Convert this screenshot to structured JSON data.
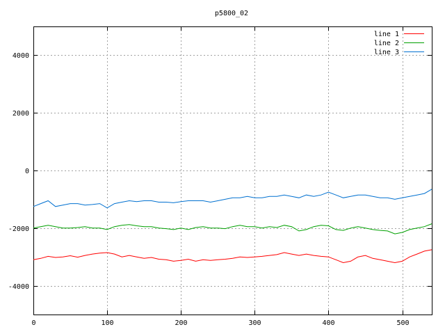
{
  "chart_data": {
    "type": "line",
    "title": "p5800_02",
    "xlabel": "",
    "ylabel": "",
    "xlim": [
      0,
      540
    ],
    "ylim": [
      -5000,
      5000
    ],
    "xticks": [
      0,
      100,
      200,
      300,
      400,
      500
    ],
    "yticks": [
      -4000,
      -2000,
      0,
      2000,
      4000
    ],
    "x_tick_labels": [
      "0",
      "100",
      "200",
      "300",
      "400",
      "500"
    ],
    "y_tick_labels": [
      "-4000",
      "-2000",
      "0",
      "2000",
      "4000"
    ],
    "grid": true,
    "legend_position": "top-right",
    "x": [
      0,
      10,
      20,
      30,
      40,
      50,
      60,
      70,
      80,
      90,
      100,
      110,
      120,
      130,
      140,
      150,
      160,
      170,
      180,
      190,
      200,
      210,
      220,
      230,
      240,
      250,
      260,
      270,
      280,
      290,
      300,
      310,
      320,
      330,
      340,
      350,
      360,
      370,
      380,
      390,
      400,
      410,
      420,
      430,
      440,
      450,
      460,
      470,
      480,
      490,
      500,
      510,
      520,
      530,
      540
    ],
    "series": [
      {
        "name": "line 1",
        "color": "#ff0000",
        "values": [
          -3100,
          -3050,
          -2980,
          -3020,
          -3000,
          -2960,
          -3010,
          -2950,
          -2900,
          -2870,
          -2850,
          -2900,
          -3000,
          -2950,
          -3000,
          -3050,
          -3020,
          -3080,
          -3100,
          -3150,
          -3120,
          -3080,
          -3150,
          -3100,
          -3120,
          -3100,
          -3080,
          -3050,
          -3000,
          -3020,
          -3000,
          -2980,
          -2950,
          -2920,
          -2850,
          -2900,
          -2950,
          -2900,
          -2950,
          -2980,
          -3000,
          -3100,
          -3200,
          -3150,
          -3000,
          -2950,
          -3050,
          -3100,
          -3150,
          -3200,
          -3150,
          -3000,
          -2900,
          -2800,
          -2750
        ]
      },
      {
        "name": "line 2",
        "color": "#00a000",
        "values": [
          -2000,
          -1950,
          -1900,
          -1950,
          -2000,
          -2000,
          -1980,
          -1950,
          -2000,
          -2000,
          -2050,
          -1950,
          -1900,
          -1880,
          -1920,
          -1950,
          -1950,
          -2000,
          -2020,
          -2050,
          -2000,
          -2050,
          -1980,
          -1950,
          -2000,
          -2000,
          -2020,
          -1950,
          -1900,
          -1950,
          -1950,
          -2000,
          -1950,
          -1980,
          -1900,
          -1950,
          -2100,
          -2050,
          -1950,
          -1900,
          -1920,
          -2050,
          -2080,
          -2000,
          -1950,
          -2000,
          -2050,
          -2080,
          -2100,
          -2200,
          -2150,
          -2050,
          -2000,
          -1950,
          -1850
        ]
      },
      {
        "name": "line 3",
        "color": "#0070d0",
        "values": [
          -1250,
          -1150,
          -1050,
          -1250,
          -1200,
          -1150,
          -1150,
          -1200,
          -1180,
          -1150,
          -1300,
          -1150,
          -1100,
          -1050,
          -1080,
          -1050,
          -1050,
          -1100,
          -1100,
          -1120,
          -1080,
          -1050,
          -1050,
          -1050,
          -1100,
          -1050,
          -1000,
          -950,
          -950,
          -900,
          -950,
          -950,
          -900,
          -900,
          -850,
          -900,
          -950,
          -850,
          -900,
          -850,
          -750,
          -850,
          -950,
          -900,
          -850,
          -850,
          -900,
          -950,
          -950,
          -1000,
          -950,
          -900,
          -850,
          -800,
          -650
        ]
      }
    ]
  }
}
